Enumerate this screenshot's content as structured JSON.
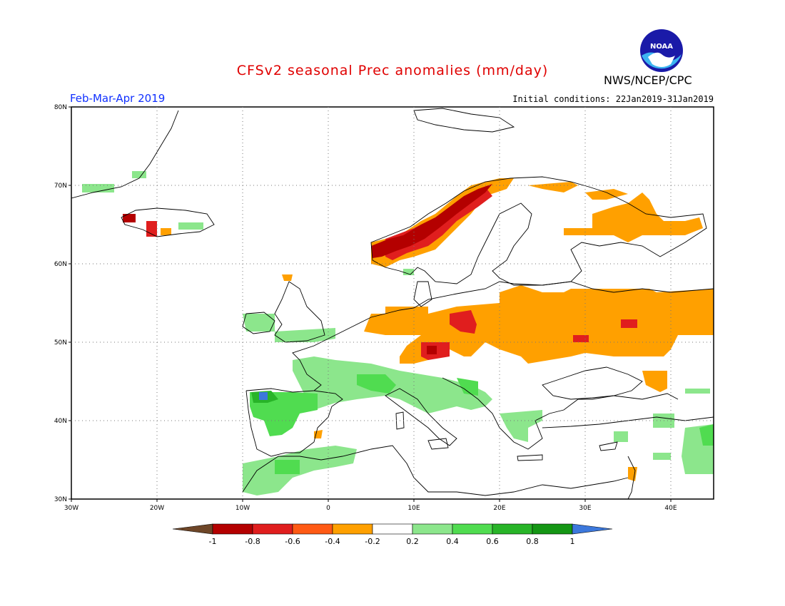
{
  "header": {
    "title": "CFSv2 seasonal Prec anomalies (mm/day)",
    "period": "Feb-Mar-Apr 2019",
    "initial_conditions": "Initial conditions: 22Jan2019-31Jan2019",
    "agency": "NWS/NCEP/CPC",
    "logo_text": "NOAA"
  },
  "map": {
    "lon_range": [
      -30,
      45
    ],
    "lat_range": [
      30,
      80
    ],
    "lon_ticks": [
      "30W",
      "20W",
      "10W",
      "0",
      "10E",
      "20E",
      "30E",
      "40E"
    ],
    "lat_ticks": [
      "30N",
      "40N",
      "50N",
      "60N",
      "70N",
      "80N"
    ],
    "gridlines": true,
    "anomaly_regions": [
      {
        "name": "norway-coast-strong-dry",
        "level": "-0.8",
        "color": "#c81414"
      },
      {
        "name": "alps-dry",
        "level": "-0.6",
        "color": "#e8321e"
      },
      {
        "name": "central-eastern-europe-dry",
        "level": "-0.4",
        "color": "#ffa000"
      },
      {
        "name": "northwest-russia-dry",
        "level": "-0.4",
        "color": "#ffa000"
      },
      {
        "name": "iberia-wet",
        "level": "0.4",
        "color": "#3cc83c"
      },
      {
        "name": "italy-balkans-wet",
        "level": "0.2",
        "color": "#8ce68c"
      }
    ]
  },
  "colorbar": {
    "labels": [
      "-1",
      "-0.8",
      "-0.6",
      "-0.4",
      "-0.2",
      "0.2",
      "0.4",
      "0.6",
      "0.8",
      "1"
    ],
    "colors": [
      "#6e4628",
      "#b40000",
      "#e01e1e",
      "#ff5a14",
      "#ffa000",
      "#ffffff",
      "#8ce68c",
      "#50dc50",
      "#28b428",
      "#149614",
      "#3c78dc"
    ]
  }
}
